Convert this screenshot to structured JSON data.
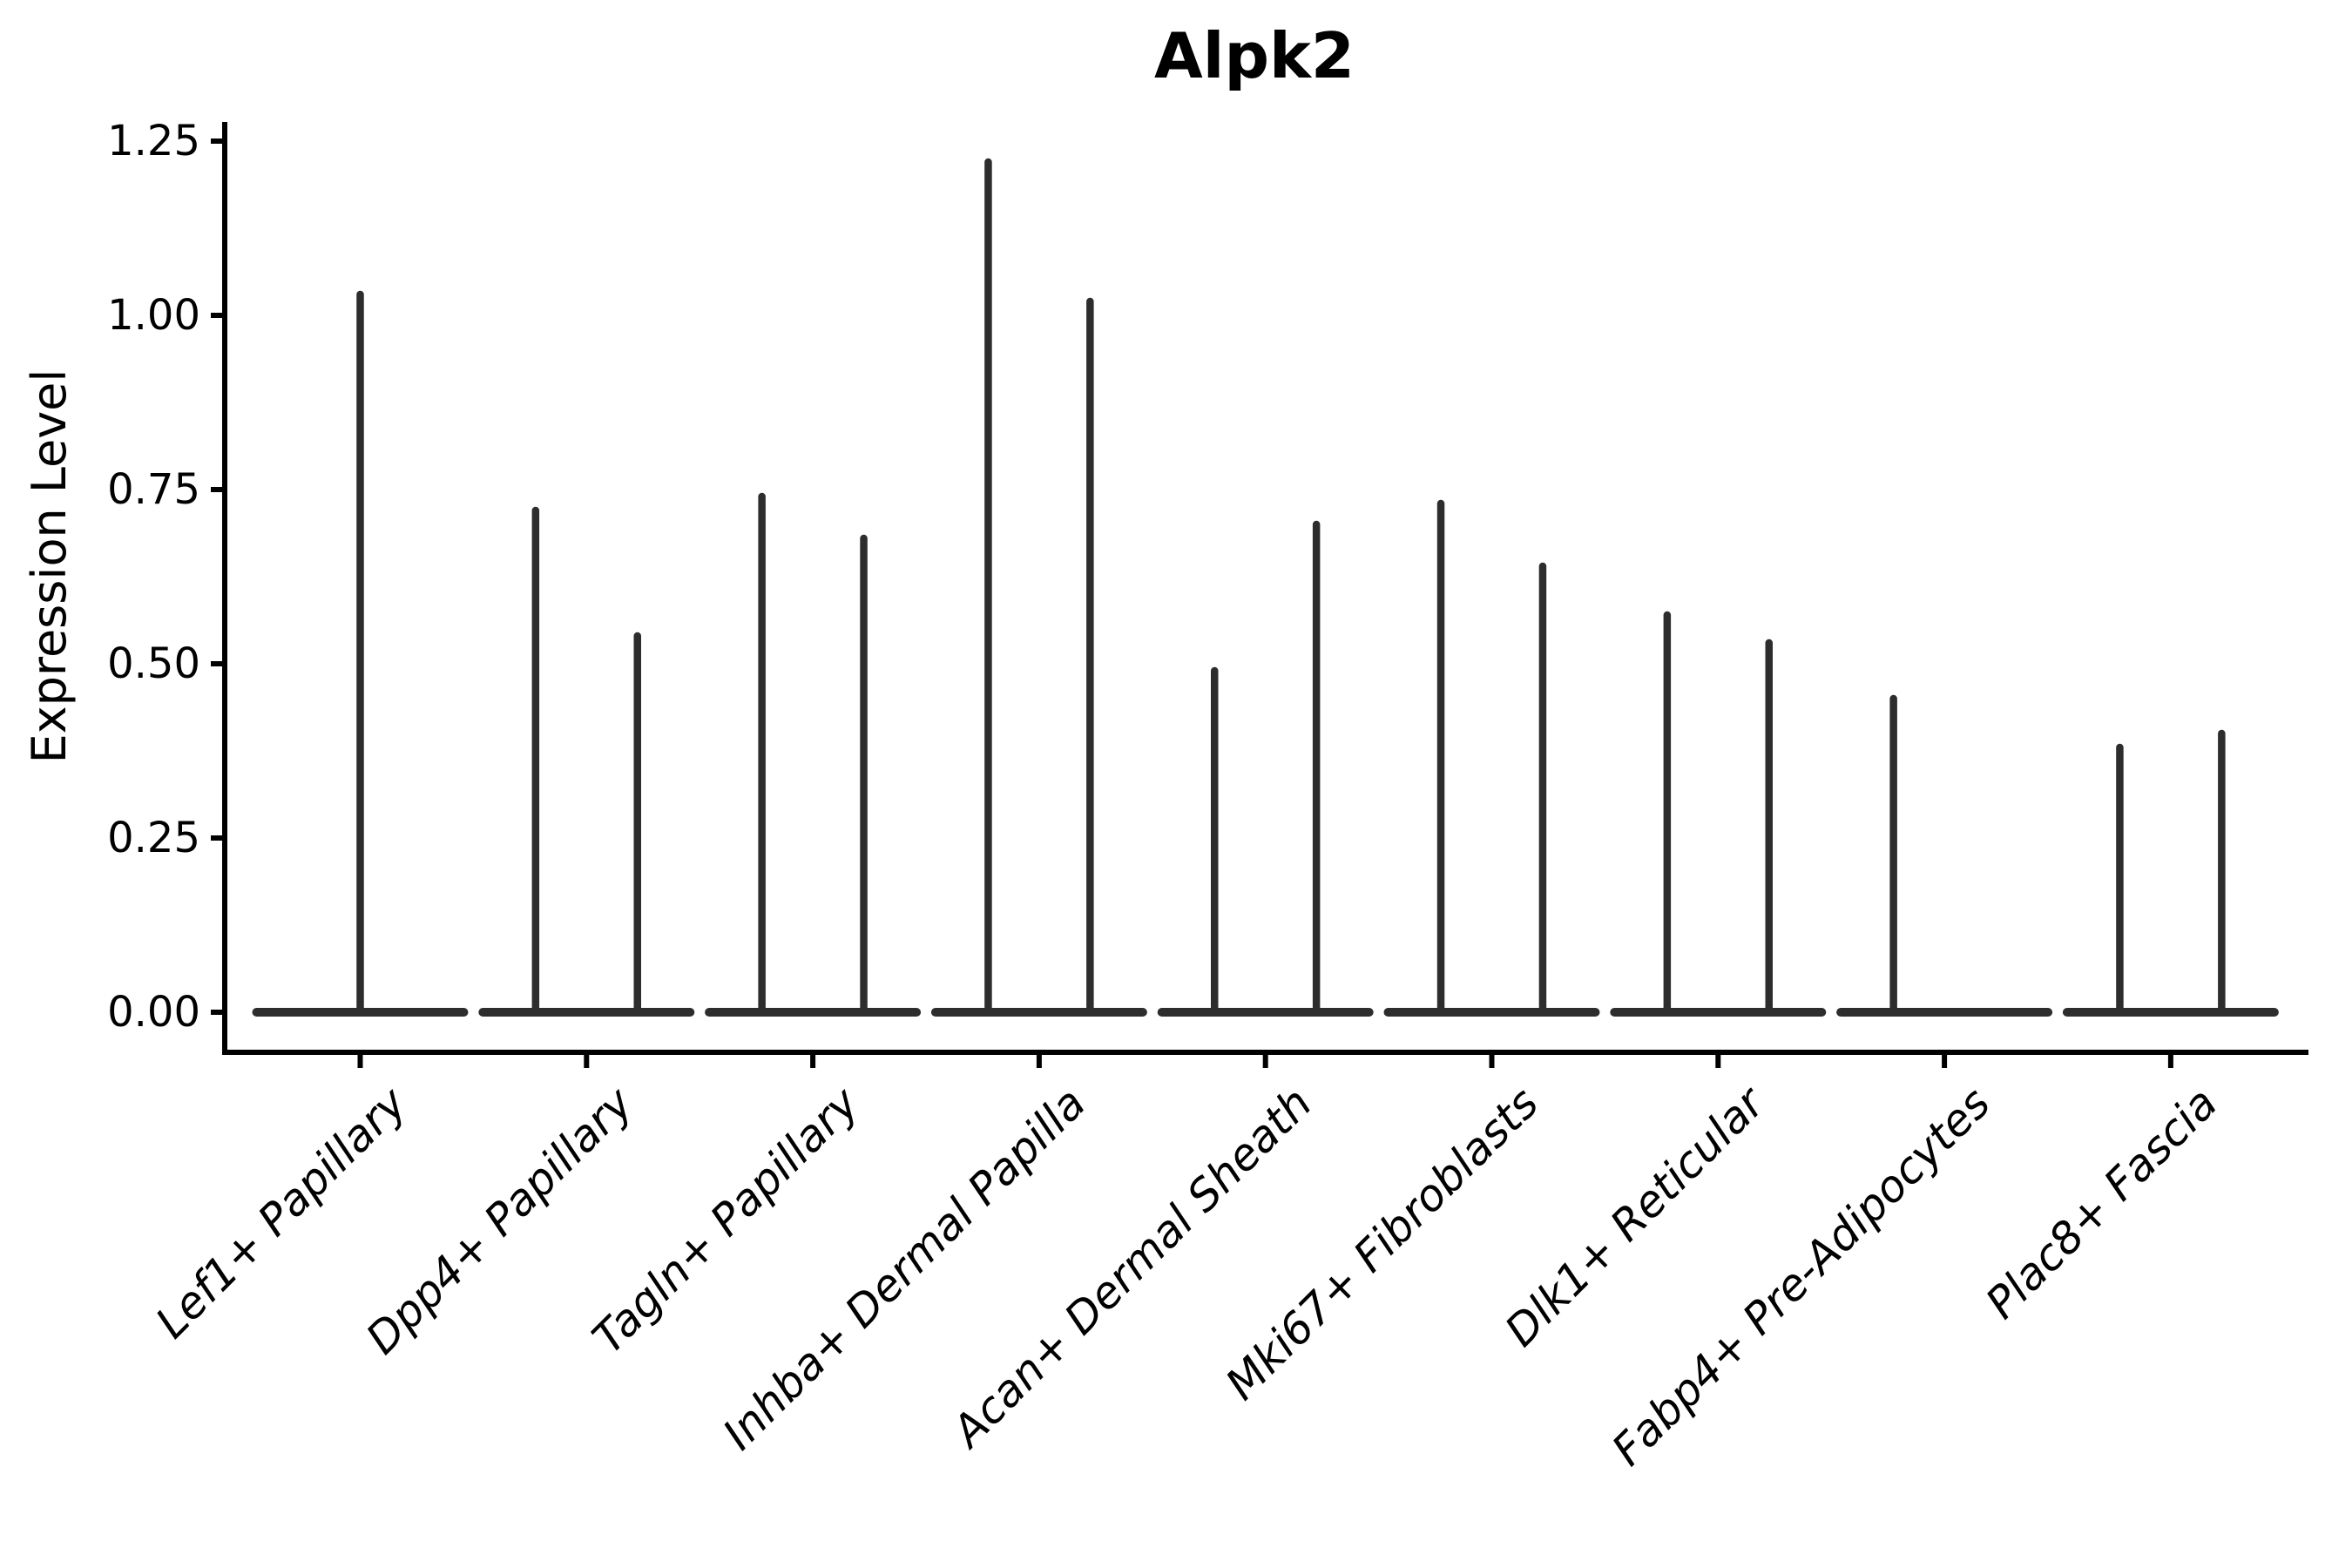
{
  "title": "Alpk2",
  "y_axis": {
    "label": "Expression Level",
    "ticks": [
      {
        "label": "0.00",
        "value": 0.0
      },
      {
        "label": "0.25",
        "value": 0.25
      },
      {
        "label": "0.50",
        "value": 0.5
      },
      {
        "label": "0.75",
        "value": 0.75
      },
      {
        "label": "1.00",
        "value": 1.0
      },
      {
        "label": "1.25",
        "value": 1.25
      }
    ]
  },
  "x_axis": {
    "categories": [
      "Lef1+ Papillary",
      "Dpp4+ Papillary",
      "Tagln+ Papillary",
      "Inhba+ Dermal Papilla",
      "Acan+ Dermal Sheath",
      "Mki67+ Fibroblasts",
      "Dlk1+ Reticular",
      "Fabp4+ Pre-Adipocytes",
      "Plac8+ Fascia"
    ]
  },
  "colors": {
    "violin_line": "#2d2d2d",
    "axis": "#000000",
    "text": "#000000",
    "background": "#ffffff"
  },
  "chart_data": {
    "type": "violin",
    "title": "Alpk2",
    "xlabel": "",
    "ylabel": "Expression Level",
    "ylim": [
      -0.06,
      1.28
    ],
    "yticks": [
      0.0,
      0.25,
      0.5,
      0.75,
      1.0,
      1.25
    ],
    "grid": false,
    "legend": false,
    "note": "Very thin (spike-like) violins; most categories show two violins side by side, each violin drawn as a vertical spike from 0 to its max expression with a flat baseline at 0",
    "categories": [
      "Lef1+ Papillary",
      "Dpp4+ Papillary",
      "Tagln+ Papillary",
      "Inhba+ Dermal Papilla",
      "Acan+ Dermal Sheath",
      "Mki67+ Fibroblasts",
      "Dlk1+ Reticular",
      "Fabp4+ Pre-Adipocytes",
      "Plac8+ Fascia"
    ],
    "series": [
      {
        "category": "Lef1+ Papillary",
        "violins": [
          {
            "max": 1.03,
            "slot_offset": 0.5
          }
        ]
      },
      {
        "category": "Dpp4+ Papillary",
        "violins": [
          {
            "max": 0.72,
            "slot_offset": 0.275
          },
          {
            "max": 0.54,
            "slot_offset": 0.725
          }
        ]
      },
      {
        "category": "Tagln+ Papillary",
        "violins": [
          {
            "max": 0.74,
            "slot_offset": 0.275
          },
          {
            "max": 0.68,
            "slot_offset": 0.725
          }
        ]
      },
      {
        "category": "Inhba+ Dermal Papilla",
        "violins": [
          {
            "max": 1.22,
            "slot_offset": 0.275
          },
          {
            "max": 1.02,
            "slot_offset": 0.725
          }
        ]
      },
      {
        "category": "Acan+ Dermal Sheath",
        "violins": [
          {
            "max": 0.49,
            "slot_offset": 0.275
          },
          {
            "max": 0.7,
            "slot_offset": 0.725
          }
        ]
      },
      {
        "category": "Mki67+ Fibroblasts",
        "violins": [
          {
            "max": 0.73,
            "slot_offset": 0.275
          },
          {
            "max": 0.64,
            "slot_offset": 0.725
          }
        ]
      },
      {
        "category": "Dlk1+ Reticular",
        "violins": [
          {
            "max": 0.57,
            "slot_offset": 0.275
          },
          {
            "max": 0.53,
            "slot_offset": 0.725
          }
        ]
      },
      {
        "category": "Fabp4+ Pre-Adipocytes",
        "violins": [
          {
            "max": 0.45,
            "slot_offset": 0.275
          }
        ]
      },
      {
        "category": "Plac8+ Fascia",
        "violins": [
          {
            "max": 0.38,
            "slot_offset": 0.275
          },
          {
            "max": 0.4,
            "slot_offset": 0.725
          }
        ]
      }
    ]
  }
}
